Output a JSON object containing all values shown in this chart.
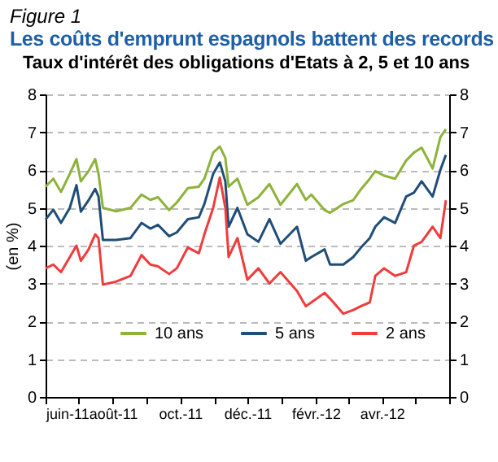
{
  "chart_data": {
    "type": "line",
    "annotations": [
      "Figure 1"
    ],
    "title": "Les coûts d'emprunt espagnols battent des records",
    "subtitle": "Taux d'intérêt des obligations d'Etats à 2, 5 et 10 ans",
    "ylabel": "(en %)",
    "x": [
      "2011-06-01",
      "2011-06-08",
      "2011-06-15",
      "2011-06-23",
      "2011-06-29",
      "2011-07-03",
      "2011-07-10",
      "2011-07-16",
      "2011-07-19",
      "2011-07-23",
      "2011-08-04",
      "2011-08-17",
      "2011-08-27",
      "2011-09-04",
      "2011-09-11",
      "2011-09-21",
      "2011-09-28",
      "2011-10-08",
      "2011-10-18",
      "2011-10-23",
      "2011-10-31",
      "2011-11-06",
      "2011-11-11",
      "2011-11-14",
      "2011-11-22",
      "2011-12-01",
      "2011-12-11",
      "2011-12-21",
      "2011-12-31",
      "2012-01-15",
      "2012-01-23",
      "2012-01-28",
      "2012-02-09",
      "2012-02-14",
      "2012-02-26",
      "2012-03-06",
      "2012-03-13",
      "2012-03-21",
      "2012-03-26",
      "2012-04-03",
      "2012-04-13",
      "2012-04-23",
      "2012-04-30",
      "2012-05-07",
      "2012-05-17",
      "2012-05-24",
      "2012-05-29"
    ],
    "series": [
      {
        "name": "10 ans",
        "color": "#8db33a",
        "values": [
          5.56,
          5.77,
          5.42,
          5.9,
          6.29,
          5.7,
          5.97,
          6.29,
          5.9,
          5.0,
          4.91,
          5.0,
          5.35,
          5.21,
          5.28,
          4.94,
          5.14,
          5.52,
          5.56,
          5.77,
          6.46,
          6.62,
          6.32,
          5.56,
          5.77,
          5.08,
          5.28,
          5.63,
          5.08,
          5.63,
          5.21,
          5.35,
          4.94,
          4.87,
          5.1,
          5.2,
          5.49,
          5.77,
          5.97,
          5.85,
          5.77,
          6.25,
          6.46,
          6.59,
          6.04,
          6.87,
          7.08
        ]
      },
      {
        "name": "5 ans",
        "color": "#1f4e79",
        "values": [
          4.69,
          4.95,
          4.6,
          5.0,
          5.6,
          4.9,
          5.2,
          5.5,
          5.3,
          4.15,
          4.15,
          4.2,
          4.6,
          4.45,
          4.55,
          4.25,
          4.35,
          4.7,
          4.75,
          5.1,
          5.9,
          6.2,
          5.7,
          4.5,
          5.0,
          4.3,
          4.1,
          4.7,
          4.05,
          4.5,
          3.6,
          3.7,
          3.9,
          3.5,
          3.5,
          3.7,
          3.95,
          4.2,
          4.5,
          4.75,
          4.6,
          5.3,
          5.4,
          5.7,
          5.3,
          6.0,
          6.4
        ]
      },
      {
        "name": "2 ans",
        "color": "#f03c3c",
        "values": [
          3.4,
          3.5,
          3.3,
          3.7,
          4.0,
          3.6,
          3.9,
          4.3,
          4.2,
          2.97,
          3.05,
          3.2,
          3.75,
          3.5,
          3.45,
          3.25,
          3.4,
          3.95,
          3.8,
          4.3,
          5.0,
          5.8,
          5.0,
          3.7,
          4.2,
          3.1,
          3.4,
          3.0,
          3.3,
          2.8,
          2.4,
          2.5,
          2.75,
          2.6,
          2.2,
          2.3,
          2.4,
          2.5,
          3.2,
          3.4,
          3.2,
          3.3,
          4.0,
          4.1,
          4.5,
          4.2,
          5.2
        ]
      }
    ],
    "xlim": [
      "2011-06-01",
      "2012-06-01"
    ],
    "xticks": [
      {
        "value": "2011-06-01",
        "label": "juin-11"
      },
      {
        "value": "2011-07-01",
        "label": null
      },
      {
        "value": "2011-08-01",
        "label": "août-11"
      },
      {
        "value": "2011-09-01",
        "label": null
      },
      {
        "value": "2011-10-01",
        "label": "oct.-11"
      },
      {
        "value": "2011-11-01",
        "label": null
      },
      {
        "value": "2011-12-01",
        "label": "déc.-11"
      },
      {
        "value": "2012-01-01",
        "label": null
      },
      {
        "value": "2012-02-01",
        "label": "févr.-12"
      },
      {
        "value": "2012-03-01",
        "label": null
      },
      {
        "value": "2012-04-01",
        "label": "avr.-12"
      },
      {
        "value": "2012-05-01",
        "label": null
      },
      {
        "value": "2012-06-01",
        "label": null
      }
    ],
    "ylim": [
      0,
      8
    ],
    "yticks": [
      0,
      1,
      2,
      3,
      4,
      5,
      6,
      7,
      8
    ],
    "y2lim": [
      0,
      8
    ],
    "y2ticks": [
      0,
      1,
      2,
      3,
      4,
      5,
      6,
      7,
      8
    ],
    "grid": "y",
    "legend": "bottom",
    "line_style": "solid"
  }
}
